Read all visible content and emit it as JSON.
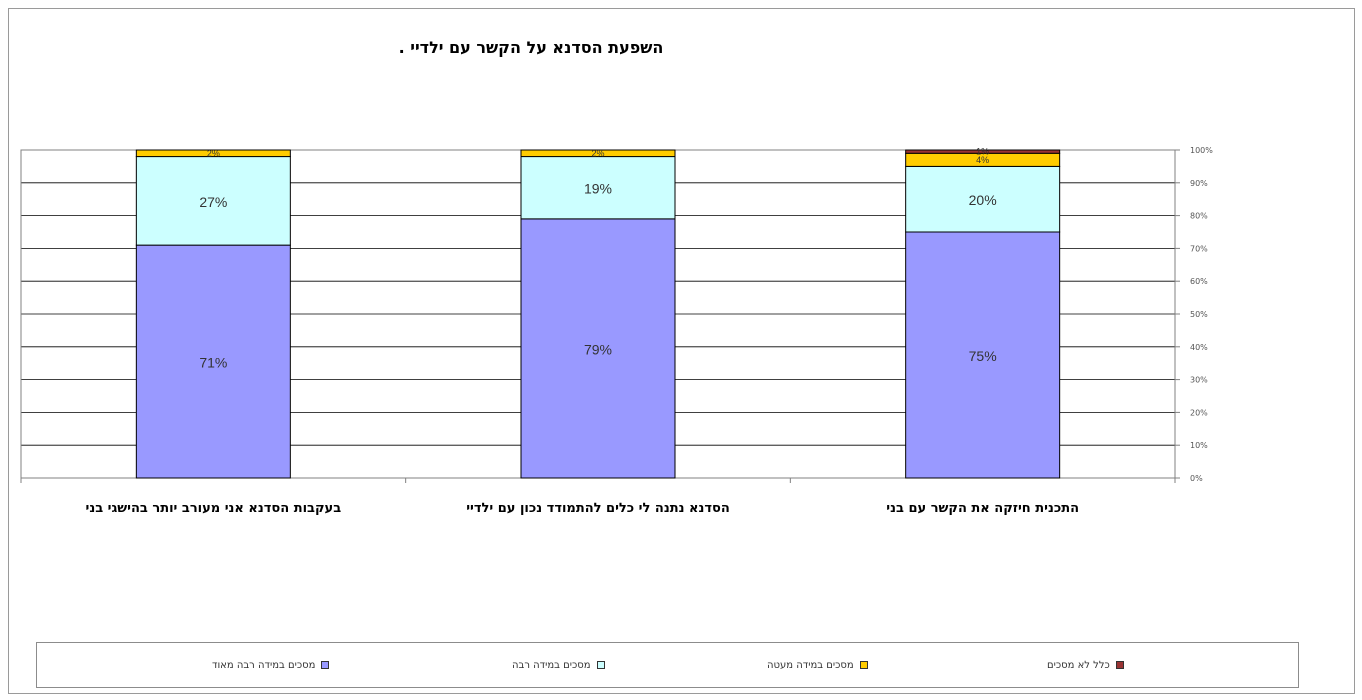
{
  "chart_data": {
    "type": "bar",
    "stacked": true,
    "title": "השפעת הסדנא על הקשר עם ילדיי .",
    "categories": [
      "התכנית חיזקה את הקשר עם בני",
      "הסדנא נתנה לי כלים להתמודד נכון עם ילדיי",
      "בעקבות הסדנא אני מעורב יותר בהישגי בני"
    ],
    "y_ticks": [
      "100%",
      "90%",
      "80%",
      "70%",
      "60%",
      "50%",
      "40%",
      "30%",
      "20%",
      "10%",
      "0%"
    ],
    "ylim": [
      0,
      100
    ],
    "y_axis_position": "right",
    "grid": true,
    "legend_position": "bottom",
    "series": [
      {
        "name": "מסכים במידה רבה מאוד",
        "color": "#9999ff",
        "values": [
          75,
          79,
          71
        ],
        "labels": [
          "75%",
          "79%",
          "71%"
        ]
      },
      {
        "name": "מסכים במידה רבה",
        "color": "#ccffff",
        "values": [
          20,
          19,
          27
        ],
        "labels": [
          "20%",
          "19%",
          "27%"
        ]
      },
      {
        "name": "מסכים במידה מעטה",
        "color": "#ffcc00",
        "values": [
          4,
          2,
          2
        ],
        "labels": [
          "4%",
          "2%",
          "2%"
        ]
      },
      {
        "name": "כלל לא מסכים",
        "color": "#993333",
        "values": [
          1,
          0,
          0
        ],
        "labels": [
          "1%",
          "",
          ""
        ]
      }
    ]
  }
}
